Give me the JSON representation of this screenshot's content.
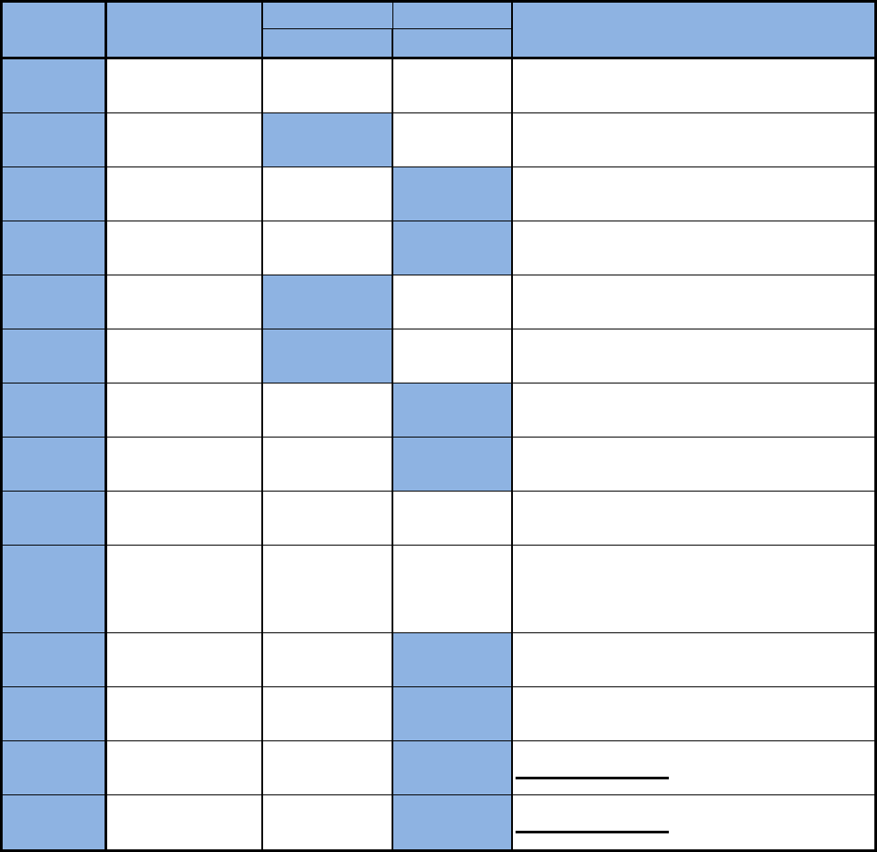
{
  "table": {
    "header_color": "#8eb3e2",
    "border_color": "#000000",
    "columns": [
      "",
      "",
      "",
      "",
      ""
    ],
    "header_group": "",
    "rows": [
      {
        "highlight": [
          1
        ],
        "underline": false
      },
      {
        "highlight": [
          1,
          3
        ],
        "underline": false
      },
      {
        "highlight": [
          1,
          4
        ],
        "underline": false
      },
      {
        "highlight": [
          1,
          4
        ],
        "underline": false
      },
      {
        "highlight": [
          1,
          3
        ],
        "underline": false
      },
      {
        "highlight": [
          1,
          3
        ],
        "underline": false
      },
      {
        "highlight": [
          1,
          4
        ],
        "underline": false
      },
      {
        "highlight": [
          1,
          4
        ],
        "underline": false
      },
      {
        "highlight": [
          1
        ],
        "underline": false
      },
      {
        "highlight": [
          1
        ],
        "underline": false,
        "tall": true
      },
      {
        "highlight": [
          1,
          4
        ],
        "underline": false
      },
      {
        "highlight": [
          1,
          4
        ],
        "underline": false
      },
      {
        "highlight": [
          1,
          4
        ],
        "underline": true
      },
      {
        "highlight": [
          1,
          4
        ],
        "underline": true
      }
    ]
  }
}
